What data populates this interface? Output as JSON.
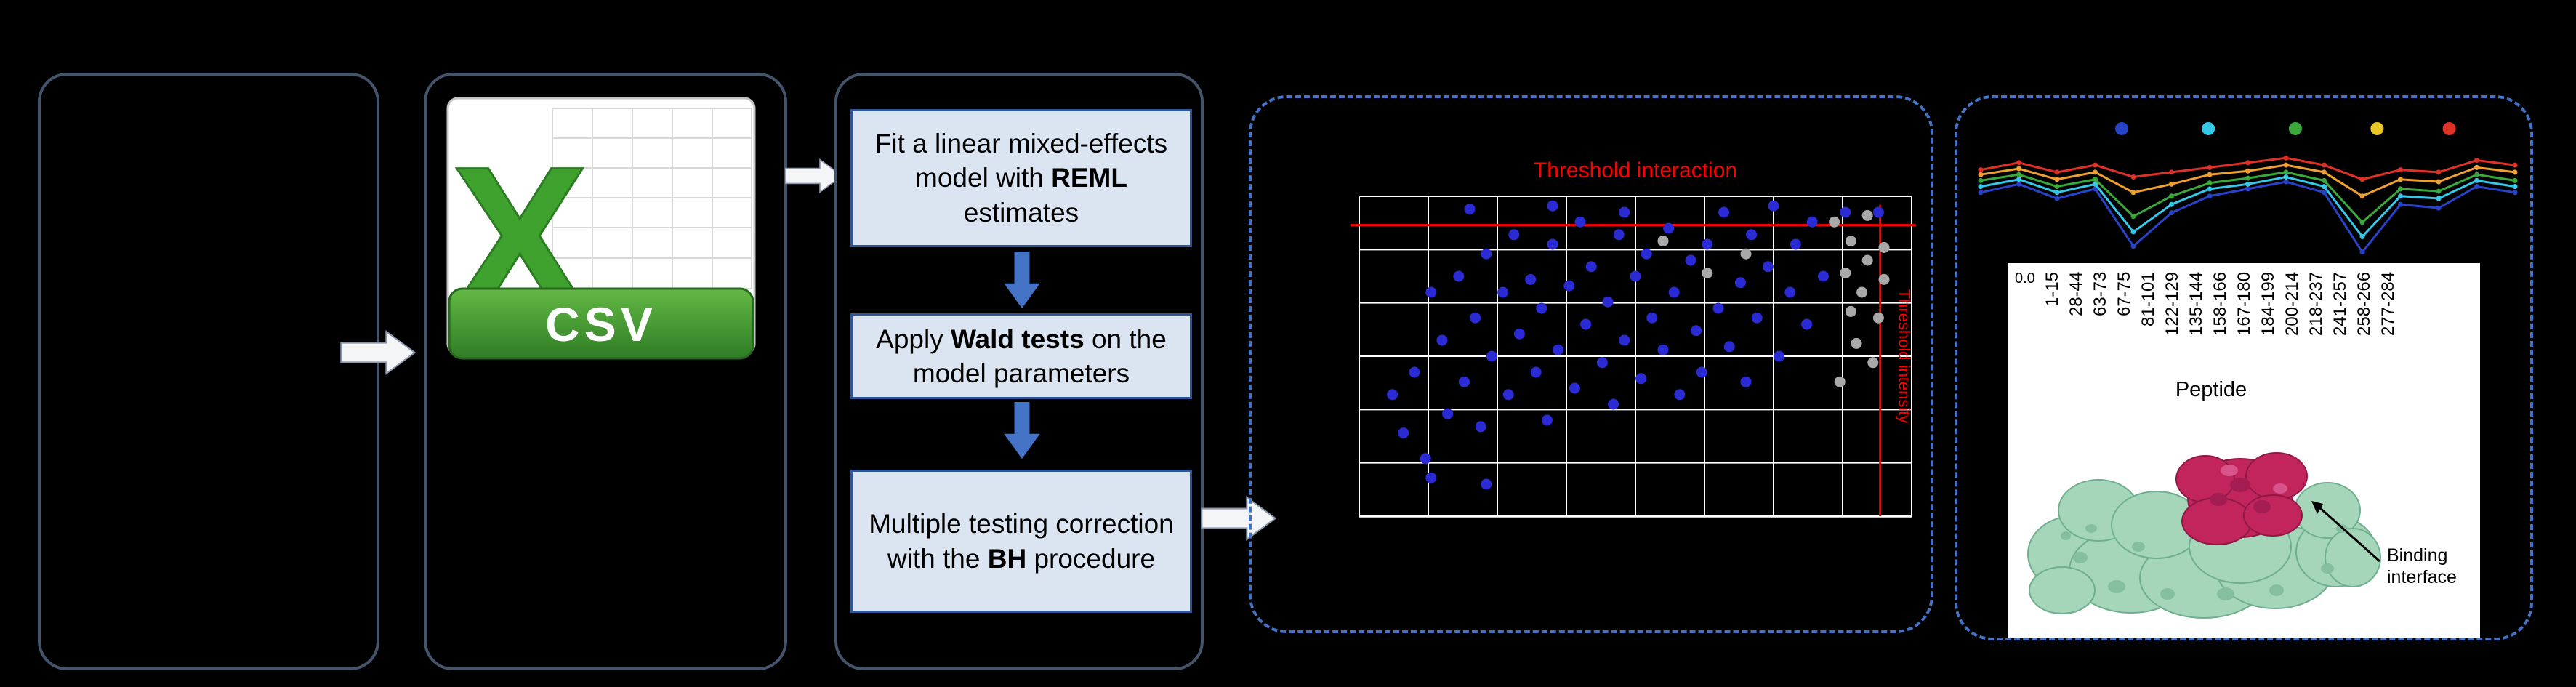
{
  "colors": {
    "background": "#000000",
    "box_border": "#44546a",
    "dashed_border": "#4472c4",
    "step_fill": "#dbe5f1",
    "step_border": "#2e5596",
    "flow_arrow_fill": "#f4f5f7",
    "down_arrow_fill": "#4472c4",
    "threshold_red": "#ff0000",
    "point_blue": "#2b2bd6",
    "point_gray": "#a9a9a9",
    "grid_white": "#ffffff",
    "csv_green": "#3fa22e",
    "protein_green": "#a5d6ba",
    "protein_magenta": "#c2255c"
  },
  "icons": {
    "csv_file": "csv-file-icon",
    "flow_arrow": "arrow-right-icon",
    "down_arrow": "arrow-down-icon"
  },
  "csv": {
    "logo_letter": "X",
    "banner_label": "CSV"
  },
  "steps": [
    {
      "before": "Fit a linear mixed-effects model with ",
      "bold": "REML",
      "after": " estimates"
    },
    {
      "before": "Apply ",
      "bold": "Wald tests",
      "after": " on the model parameters"
    },
    {
      "before": "Multiple testing correction with the ",
      "bold": "BH",
      "after": " procedure"
    }
  ],
  "protein": {
    "annotation": "Binding interface"
  },
  "chart_data": [
    {
      "type": "scatter",
      "title": "Threshold interaction",
      "vertical_threshold_label": "Threshold intensity",
      "threshold_color": "#ff0000",
      "plot_bg": "#000000",
      "grid": true,
      "thresholds": {
        "h_frac": 0.09,
        "v_frac": 0.943
      },
      "series": [
        {
          "name": "significant-blue",
          "color": "#2b2bd6",
          "points_pct": [
            [
              6,
              62
            ],
            [
              8,
              74
            ],
            [
              10,
              55
            ],
            [
              12,
              82
            ],
            [
              13,
              30
            ],
            [
              13,
              88
            ],
            [
              15,
              45
            ],
            [
              16,
              68
            ],
            [
              18,
              25
            ],
            [
              19,
              58
            ],
            [
              21,
              38
            ],
            [
              22,
              72
            ],
            [
              23,
              18
            ],
            [
              23,
              90
            ],
            [
              24,
              50
            ],
            [
              26,
              30
            ],
            [
              27,
              62
            ],
            [
              28,
              12
            ],
            [
              29,
              43
            ],
            [
              31,
              26
            ],
            [
              32,
              55
            ],
            [
              33,
              35
            ],
            [
              34,
              70
            ],
            [
              35,
              15
            ],
            [
              36,
              48
            ],
            [
              38,
              28
            ],
            [
              39,
              60
            ],
            [
              40,
              8
            ],
            [
              41,
              40
            ],
            [
              42,
              22
            ],
            [
              44,
              52
            ],
            [
              45,
              33
            ],
            [
              46,
              65
            ],
            [
              47,
              12
            ],
            [
              48,
              45
            ],
            [
              50,
              25
            ],
            [
              51,
              57
            ],
            [
              52,
              18
            ],
            [
              53,
              38
            ],
            [
              55,
              48
            ],
            [
              56,
              10
            ],
            [
              57,
              30
            ],
            [
              58,
              62
            ],
            [
              60,
              20
            ],
            [
              61,
              42
            ],
            [
              62,
              55
            ],
            [
              63,
              15
            ],
            [
              65,
              35
            ],
            [
              66,
              5
            ],
            [
              67,
              47
            ],
            [
              69,
              27
            ],
            [
              70,
              58
            ],
            [
              71,
              12
            ],
            [
              72,
              38
            ],
            [
              74,
              22
            ],
            [
              75,
              3
            ],
            [
              76,
              50
            ],
            [
              78,
              30
            ],
            [
              79,
              15
            ],
            [
              81,
              40
            ],
            [
              82,
              8
            ],
            [
              84,
              25
            ],
            [
              20,
              4
            ],
            [
              35,
              3
            ],
            [
              48,
              5
            ],
            [
              88,
              5
            ],
            [
              94,
              5
            ]
          ]
        },
        {
          "name": "filtered-gray",
          "color": "#a9a9a9",
          "points_pct": [
            [
              86,
              8
            ],
            [
              89,
              14
            ],
            [
              92,
              6
            ],
            [
              95,
              16
            ],
            [
              88,
              24
            ],
            [
              91,
              30
            ],
            [
              94,
              38
            ],
            [
              90,
              46
            ],
            [
              93,
              52
            ],
            [
              87,
              58
            ],
            [
              95,
              26
            ],
            [
              92,
              20
            ],
            [
              89,
              36
            ],
            [
              55,
              14
            ],
            [
              63,
              24
            ],
            [
              70,
              18
            ]
          ]
        }
      ]
    },
    {
      "type": "line",
      "xlabel": "Peptide",
      "ytick_label": "0.0",
      "categories": [
        "1-15",
        "28-44",
        "63-73",
        "67-75",
        "81-101",
        "122-129",
        "135-144",
        "158-166",
        "167-180",
        "184-199",
        "200-214",
        "218-237",
        "241-257",
        "258-266",
        "277-284"
      ],
      "legend_dot_colors": [
        "#2743c8",
        "#35c8e8",
        "#3aa83a",
        "#e8c727",
        "#e03127"
      ],
      "series": [
        {
          "name": "blue",
          "color": "#2743c8",
          "values_norm": [
            0.55,
            0.62,
            0.5,
            0.58,
            0.1,
            0.38,
            0.52,
            0.58,
            0.64,
            0.55,
            0.05,
            0.45,
            0.42,
            0.6,
            0.55
          ]
        },
        {
          "name": "cyan",
          "color": "#35c8e8",
          "values_norm": [
            0.6,
            0.66,
            0.55,
            0.62,
            0.22,
            0.45,
            0.58,
            0.62,
            0.68,
            0.6,
            0.18,
            0.52,
            0.5,
            0.65,
            0.6
          ]
        },
        {
          "name": "green",
          "color": "#3aa83a",
          "values_norm": [
            0.65,
            0.7,
            0.6,
            0.66,
            0.35,
            0.52,
            0.63,
            0.67,
            0.72,
            0.65,
            0.3,
            0.58,
            0.56,
            0.7,
            0.65
          ]
        },
        {
          "name": "orange",
          "color": "#f0a030",
          "values_norm": [
            0.7,
            0.75,
            0.66,
            0.72,
            0.55,
            0.62,
            0.7,
            0.73,
            0.78,
            0.72,
            0.52,
            0.66,
            0.64,
            0.76,
            0.72
          ]
        },
        {
          "name": "red",
          "color": "#e03127",
          "values_norm": [
            0.74,
            0.8,
            0.72,
            0.78,
            0.68,
            0.72,
            0.76,
            0.8,
            0.84,
            0.78,
            0.66,
            0.74,
            0.72,
            0.82,
            0.78
          ]
        }
      ]
    }
  ]
}
